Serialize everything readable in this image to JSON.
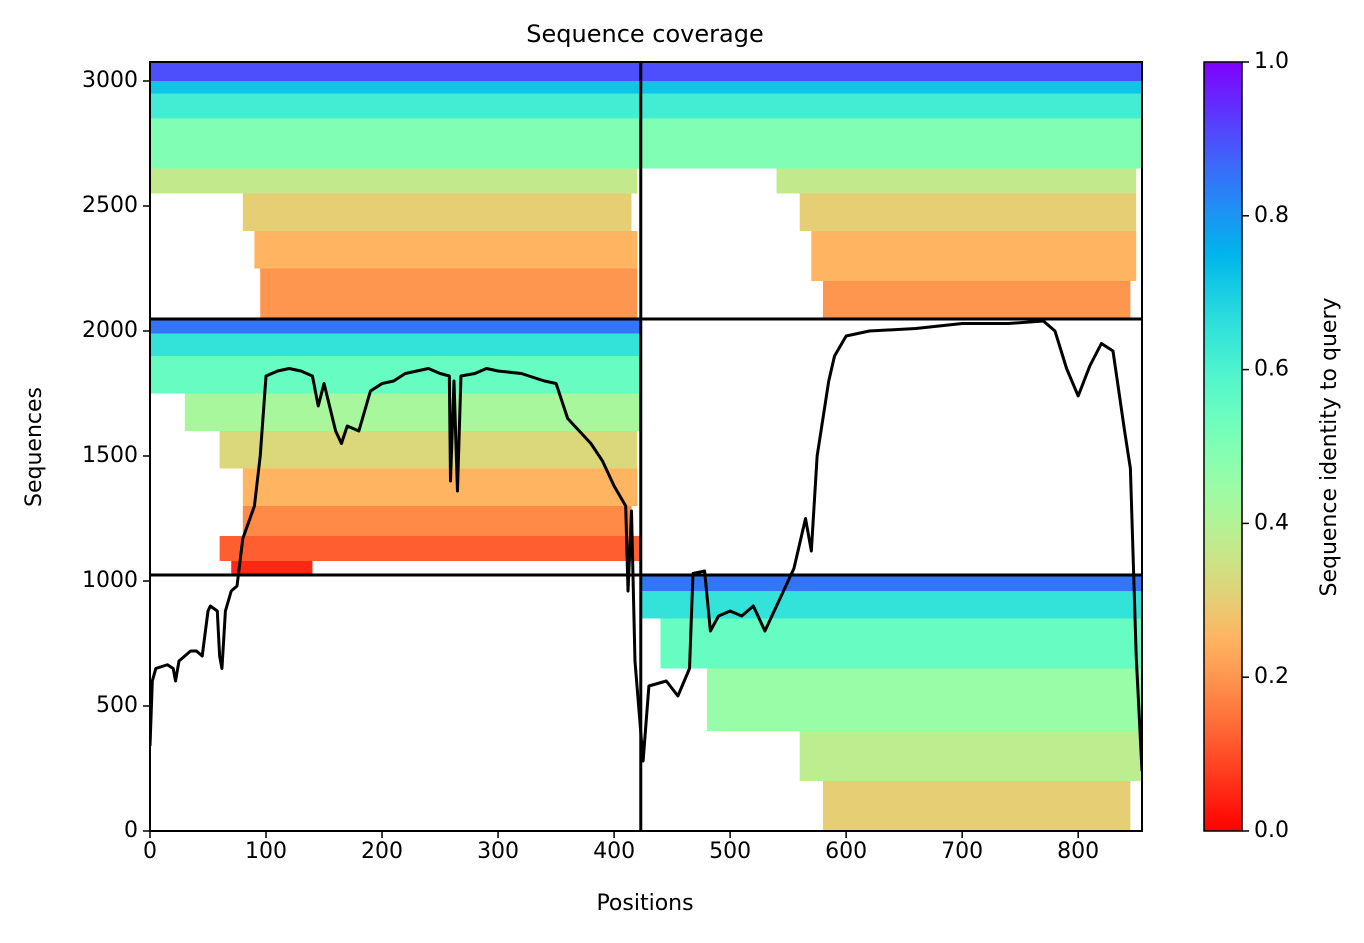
{
  "chart_data": {
    "type": "coverage",
    "title": "Sequence coverage",
    "xlabel": "Positions",
    "ylabel": "Sequences",
    "xlim": [
      0,
      855
    ],
    "ylim": [
      0,
      3076
    ],
    "xticks": [
      0,
      100,
      200,
      300,
      400,
      500,
      600,
      700,
      800
    ],
    "yticks": [
      0,
      500,
      1000,
      1500,
      2000,
      2500,
      3000
    ],
    "colormap": "rainbow_r",
    "colorbar": {
      "label": "Sequence identity to query",
      "lim": [
        0,
        1
      ],
      "ticks": [
        {
          "value": 0,
          "label": "0.0"
        },
        {
          "value": 0.2,
          "label": "0.2"
        },
        {
          "value": 0.4,
          "label": "0.4"
        },
        {
          "value": 0.6,
          "label": "0.6"
        },
        {
          "value": 0.8,
          "label": "0.8"
        },
        {
          "value": 1,
          "label": "1.0"
        }
      ]
    },
    "breaks_x": [
      423
    ],
    "breaks_y": [
      1024,
      2048
    ],
    "bands": [
      [
        0,
        200,
        580,
        845,
        0.3
      ],
      [
        200,
        400,
        560,
        855,
        0.38
      ],
      [
        400,
        650,
        480,
        855,
        0.45
      ],
      [
        650,
        850,
        440,
        855,
        0.55
      ],
      [
        850,
        960,
        423,
        855,
        0.65
      ],
      [
        960,
        1024,
        423,
        855,
        0.85
      ],
      [
        1024,
        1080,
        70,
        140,
        0.05
      ],
      [
        1080,
        1180,
        60,
        423,
        0.12
      ],
      [
        1180,
        1300,
        80,
        415,
        0.18
      ],
      [
        1300,
        1450,
        80,
        420,
        0.25
      ],
      [
        1450,
        1600,
        60,
        420,
        0.32
      ],
      [
        1600,
        1750,
        30,
        423,
        0.42
      ],
      [
        1750,
        1900,
        0,
        423,
        0.55
      ],
      [
        1900,
        1990,
        0,
        423,
        0.65
      ],
      [
        1990,
        2048,
        0,
        423,
        0.85
      ],
      [
        2048,
        2250,
        95,
        420,
        0.2
      ],
      [
        2250,
        2400,
        90,
        420,
        0.25
      ],
      [
        2400,
        2550,
        80,
        415,
        0.3
      ],
      [
        2550,
        2650,
        0,
        420,
        0.37
      ],
      [
        2650,
        2850,
        0,
        423,
        0.5
      ],
      [
        2850,
        2950,
        0,
        423,
        0.62
      ],
      [
        2950,
        3000,
        0,
        423,
        0.72
      ],
      [
        3000,
        3076,
        0,
        423,
        0.9
      ],
      [
        2048,
        2200,
        580,
        845,
        0.2
      ],
      [
        2200,
        2400,
        570,
        850,
        0.25
      ],
      [
        2400,
        2550,
        560,
        850,
        0.3
      ],
      [
        2550,
        2650,
        540,
        850,
        0.37
      ],
      [
        2650,
        2850,
        423,
        855,
        0.5
      ],
      [
        2850,
        2950,
        423,
        855,
        0.62
      ],
      [
        2950,
        3000,
        423,
        855,
        0.72
      ],
      [
        3000,
        3076,
        423,
        855,
        0.9
      ]
    ],
    "coverage": {
      "color": "#000000",
      "x": [
        0,
        2,
        5,
        15,
        20,
        22,
        25,
        35,
        40,
        45,
        50,
        52,
        58,
        60,
        62,
        65,
        70,
        75,
        80,
        90,
        95,
        100,
        110,
        120,
        130,
        140,
        145,
        150,
        160,
        165,
        170,
        180,
        190,
        200,
        210,
        220,
        240,
        250,
        258,
        259,
        262,
        265,
        268,
        280,
        290,
        300,
        320,
        340,
        350,
        360,
        370,
        380,
        390,
        400,
        410,
        412,
        415,
        418,
        425,
        430,
        445,
        455,
        465,
        468,
        478,
        483,
        490,
        500,
        510,
        520,
        530,
        545,
        555,
        565,
        570,
        575,
        585,
        590,
        600,
        620,
        660,
        700,
        740,
        770,
        780,
        790,
        800,
        810,
        820,
        830,
        840,
        845,
        850,
        855
      ],
      "values": [
        340,
        600,
        650,
        665,
        650,
        600,
        680,
        720,
        720,
        700,
        880,
        900,
        880,
        700,
        650,
        880,
        960,
        980,
        1170,
        1300,
        1500,
        1820,
        1840,
        1850,
        1840,
        1820,
        1700,
        1790,
        1600,
        1550,
        1620,
        1600,
        1760,
        1790,
        1800,
        1830,
        1850,
        1830,
        1820,
        1400,
        1800,
        1360,
        1820,
        1830,
        1850,
        1840,
        1830,
        1800,
        1790,
        1650,
        1600,
        1550,
        1480,
        1380,
        1300,
        960,
        1280,
        680,
        280,
        580,
        600,
        540,
        650,
        1030,
        1040,
        800,
        860,
        880,
        860,
        900,
        800,
        950,
        1050,
        1250,
        1120,
        1500,
        1800,
        1900,
        1980,
        2000,
        2010,
        2030,
        2030,
        2040,
        2000,
        1850,
        1740,
        1860,
        1950,
        1920,
        1600,
        1450,
        700,
        240
      ]
    }
  }
}
